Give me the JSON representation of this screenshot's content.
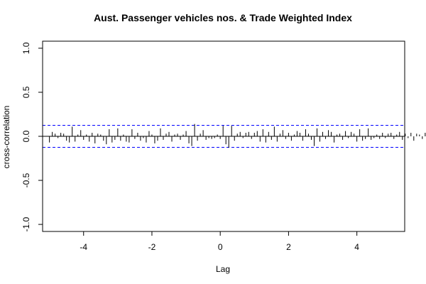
{
  "chart_data": {
    "type": "bar",
    "title": "Aust. Passenger vehicles nos. & Trade Weighted Index",
    "xlabel": "Lag",
    "ylabel": "cross-correlation",
    "xlim": [
      -5.2,
      5.4
    ],
    "ylim": [
      -1.08,
      1.08
    ],
    "x_ticks": [
      -4,
      -2,
      0,
      2,
      4
    ],
    "x_tick_labels": [
      "-4",
      "-2",
      "0",
      "2",
      "4"
    ],
    "y_ticks": [
      -1.0,
      -0.5,
      0.0,
      0.5,
      1.0
    ],
    "y_tick_labels": [
      "-1.0",
      "-0.5",
      "0.0",
      "0.5",
      "1.0"
    ],
    "confidence_bound": 0.125,
    "lag_step": 0.08333,
    "lag_start": -5,
    "values": [
      -0.07,
      0.05,
      0.03,
      -0.02,
      0.04,
      0.03,
      -0.05,
      -0.07,
      0.11,
      -0.06,
      0.02,
      0.07,
      -0.04,
      0.02,
      -0.06,
      0.04,
      -0.08,
      0.03,
      0.02,
      -0.05,
      -0.09,
      0.08,
      -0.07,
      -0.04,
      0.09,
      -0.05,
      0.02,
      -0.06,
      -0.07,
      0.08,
      -0.03,
      0.04,
      -0.05,
      -0.02,
      -0.07,
      0.06,
      0.02,
      -0.08,
      -0.05,
      0.09,
      -0.04,
      0.03,
      0.05,
      -0.06,
      0.02,
      0.03,
      -0.04,
      0.02,
      0.06,
      -0.08,
      -0.11,
      0.14,
      -0.05,
      0.03,
      0.07,
      -0.04,
      -0.02,
      -0.03,
      -0.02,
      0.02,
      -0.03,
      0.12,
      -0.09,
      -0.13,
      0.12,
      -0.05,
      0.03,
      0.05,
      -0.02,
      0.04,
      0.05,
      -0.03,
      0.04,
      0.06,
      -0.06,
      0.08,
      -0.07,
      0.05,
      -0.04,
      0.11,
      -0.06,
      0.03,
      0.07,
      -0.03,
      0.04,
      -0.05,
      0.02,
      0.06,
      0.04,
      -0.05,
      0.08,
      0.03,
      -0.04,
      -0.11,
      0.09,
      -0.06,
      0.05,
      -0.03,
      0.07,
      0.05,
      -0.07,
      0.02,
      0.03,
      -0.04,
      0.06,
      -0.02,
      0.05,
      0.03,
      -0.06,
      0.08,
      -0.05,
      -0.03,
      0.09,
      -0.04,
      -0.02,
      0.02,
      -0.03,
      0.04,
      -0.02,
      0.03,
      0.04,
      -0.03,
      0.02,
      0.05,
      -0.04,
      0.03,
      -0.02,
      0.04,
      -0.05,
      0.03,
      0.02,
      -0.03,
      0.04,
      0.02,
      -0.06,
      0.08,
      -0.04,
      0.03,
      0.02,
      -0.03,
      0.02,
      -0.02,
      0.03,
      -0.05,
      0.02,
      -0.03,
      0.02
    ],
    "grid": false,
    "colors": {
      "bars": "#000000",
      "bounds": "#0000ff",
      "zero_line": "#000000"
    }
  }
}
